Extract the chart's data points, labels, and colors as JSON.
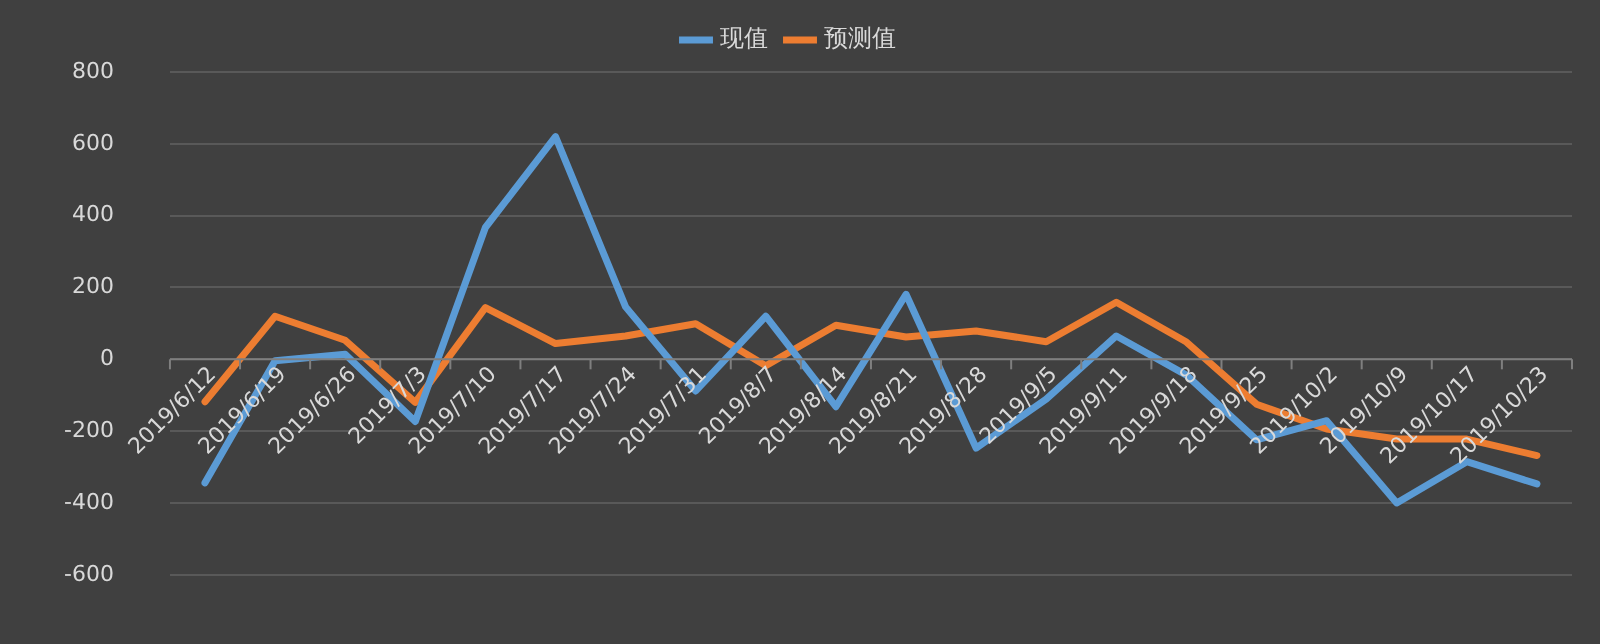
{
  "chart_data": {
    "type": "line",
    "categories": [
      "2019/6/12",
      "2019/6/19",
      "2019/6/26",
      "2019/7/3",
      "2019/7/10",
      "2019/7/17",
      "2019/7/24",
      "2019/7/31",
      "2019/8/7",
      "2019/8/14",
      "2019/8/21",
      "2019/8/28",
      "2019/9/5",
      "2019/9/11",
      "2019/9/18",
      "2019/9/25",
      "2019/10/2",
      "2019/10/9",
      "2019/10/17",
      "2019/10/23"
    ],
    "series": [
      {
        "name": "现值",
        "color": "#5b9bd5",
        "values": [
          -344,
          -4,
          14,
          -173,
          367,
          620,
          146,
          -88,
          120,
          -132,
          181,
          -247,
          -111,
          65,
          -44,
          -224,
          -171,
          -400,
          -285,
          -347
        ]
      },
      {
        "name": "预测值",
        "color": "#ed7d31",
        "values": [
          -118,
          120,
          53,
          -120,
          144,
          44,
          65,
          99,
          -18,
          95,
          62,
          79,
          49,
          159,
          48,
          -125,
          -194,
          -222,
          -222,
          -268
        ]
      }
    ],
    "ylim": [
      -600,
      800
    ],
    "yticks": [
      -600,
      -400,
      -200,
      0,
      200,
      400,
      600,
      800
    ],
    "grid": "y",
    "legend": "top",
    "marker": "none",
    "line_style": "solid"
  }
}
